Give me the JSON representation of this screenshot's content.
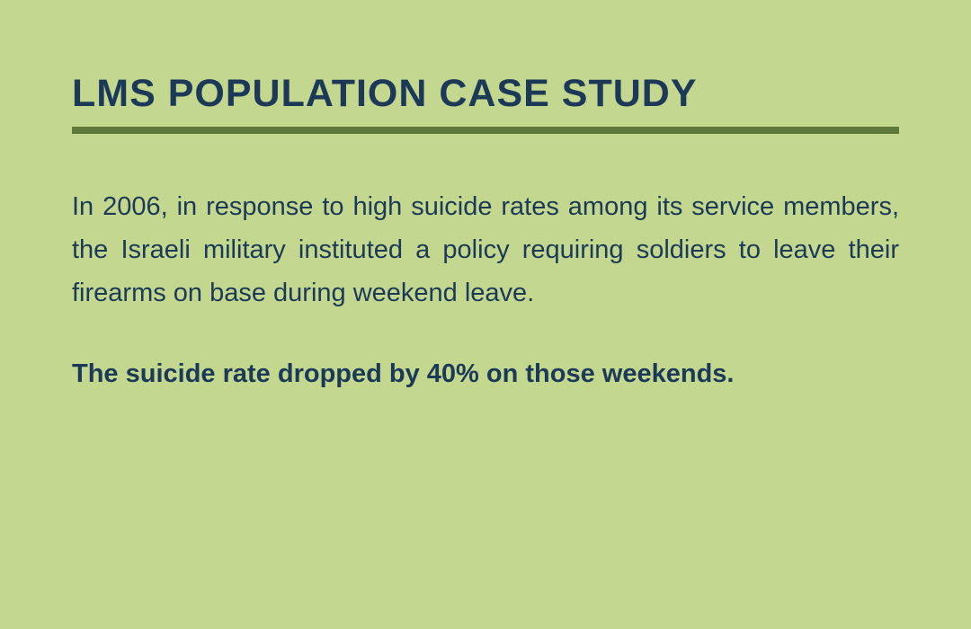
{
  "slide": {
    "title": "LMS POPULATION CASE STUDY",
    "body_paragraph": "In 2006, in response to high suicide rates among its service members, the Israeli military instituted a policy requiring soldiers to leave their firearms on base during weekend leave.",
    "highlight_paragraph": "The suicide rate dropped by 40% on those weekends."
  },
  "colors": {
    "background": "#c3d78f",
    "text": "#1c3a57",
    "divider": "#5d7a3a"
  },
  "typography": {
    "title_fontsize": 43,
    "title_weight": 800,
    "body_fontsize": 29,
    "body_lineheight": 1.65,
    "highlight_weight": 700
  }
}
